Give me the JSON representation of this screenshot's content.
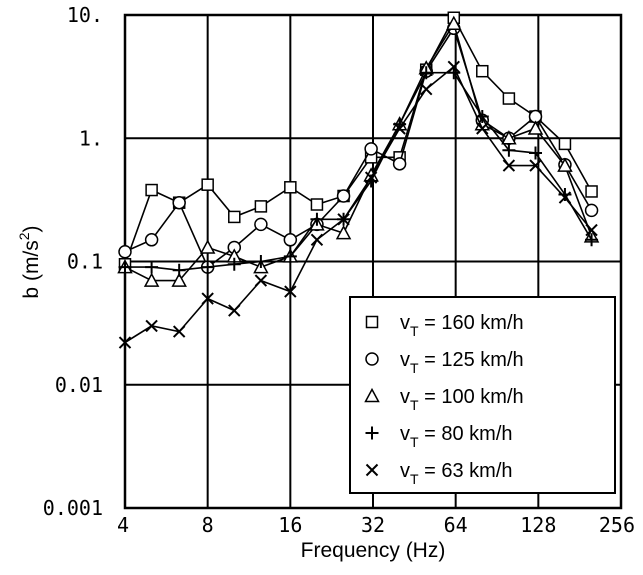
{
  "chart_data": {
    "type": "line",
    "xlabel": "Frequency (Hz)",
    "ylabel_main": "b (m/s",
    "ylabel_sup": "2",
    "ylabel_tail": ")",
    "x_scale": "log2",
    "y_scale": "log10",
    "xlim": [
      4,
      256
    ],
    "ylim": [
      0.001,
      10
    ],
    "x_ticks": [
      4,
      8,
      16,
      32,
      64,
      128,
      256
    ],
    "x_tick_labels": [
      "4",
      "8",
      "16",
      "32",
      "64",
      "128",
      "256"
    ],
    "y_ticks": [
      0.001,
      0.01,
      0.1,
      1,
      10
    ],
    "y_tick_labels": [
      "0.001",
      "0.01",
      "0.1",
      "1.",
      "10."
    ],
    "grid": true,
    "legend_position": "bottom-right",
    "x": [
      4,
      5,
      6.3,
      8,
      10,
      12.5,
      16,
      20,
      25,
      31.5,
      40,
      50,
      63,
      80,
      100,
      125,
      160,
      200
    ],
    "series": [
      {
        "marker": "square",
        "legend_prefix": "v",
        "legend_sub": "T",
        "legend_suffix": " = 160 km/h",
        "values": [
          0.095,
          0.38,
          0.3,
          0.42,
          0.23,
          0.28,
          0.4,
          0.29,
          0.34,
          0.7,
          0.7,
          3.6,
          9.5,
          3.5,
          2.1,
          1.5,
          0.9,
          0.37
        ]
      },
      {
        "marker": "circle",
        "legend_prefix": "v",
        "legend_sub": "T",
        "legend_suffix": " = 125 km/h",
        "values": [
          0.12,
          0.15,
          0.3,
          0.09,
          0.13,
          0.2,
          0.15,
          0.2,
          0.34,
          0.82,
          0.62,
          3.5,
          7.8,
          1.4,
          1.0,
          1.5,
          0.61,
          0.26
        ]
      },
      {
        "marker": "triangle",
        "legend_prefix": "v",
        "legend_sub": "T",
        "legend_suffix": " = 100 km/h",
        "values": [
          0.09,
          0.07,
          0.07,
          0.13,
          0.11,
          0.09,
          0.11,
          0.2,
          0.17,
          0.5,
          1.3,
          3.7,
          8.5,
          1.3,
          1.0,
          1.2,
          0.6,
          0.16
        ]
      },
      {
        "marker": "plus",
        "legend_prefix": "v",
        "legend_sub": "T",
        "legend_suffix": " =  80 km/h",
        "values": [
          0.09,
          0.09,
          0.085,
          0.09,
          0.095,
          0.1,
          0.11,
          0.22,
          0.22,
          0.45,
          1.3,
          3.4,
          3.4,
          1.5,
          0.8,
          0.76,
          0.35,
          0.15
        ]
      },
      {
        "marker": "cross",
        "legend_prefix": "v",
        "legend_sub": "T",
        "legend_suffix": " =  63 km/h",
        "values": [
          0.022,
          0.03,
          0.027,
          0.05,
          0.04,
          0.07,
          0.057,
          0.15,
          0.22,
          0.48,
          1.2,
          2.5,
          3.8,
          1.2,
          0.6,
          0.6,
          0.33,
          0.18
        ]
      }
    ]
  }
}
